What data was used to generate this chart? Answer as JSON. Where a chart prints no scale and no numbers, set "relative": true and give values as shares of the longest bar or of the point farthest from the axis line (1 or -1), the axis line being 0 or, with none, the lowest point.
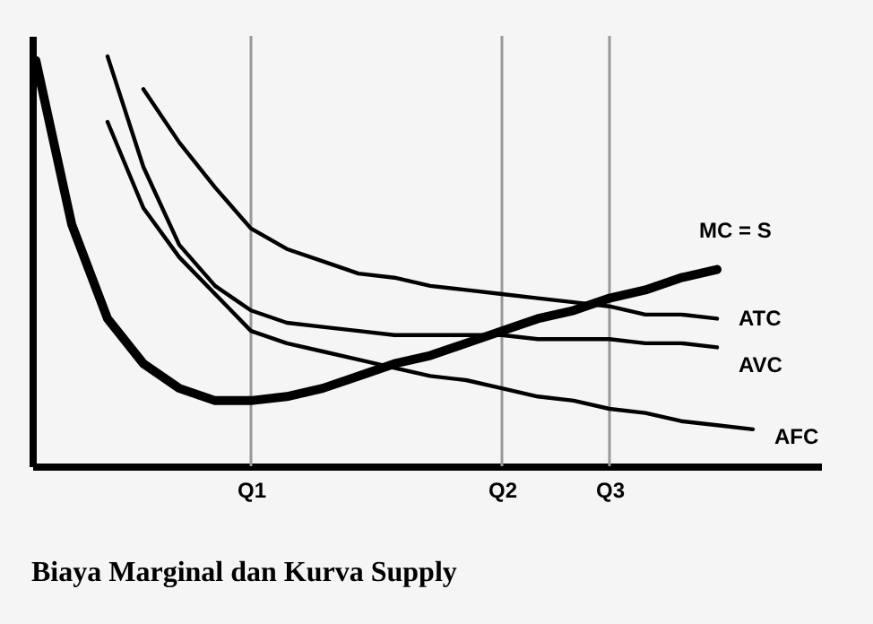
{
  "chart_data": {
    "type": "line",
    "relative": true,
    "title": "Biaya Marginal dan Kurva Supply",
    "categories": [
      null,
      null,
      null,
      null,
      null,
      null,
      "Q1",
      null,
      null,
      null,
      null,
      null,
      null,
      "Q2",
      null,
      null,
      "Q3",
      null,
      null,
      null,
      null
    ],
    "series": [
      {
        "name": "MC = S",
        "color": "#000000",
        "values": [
          0.99,
          0.59,
          0.36,
          0.25,
          0.19,
          0.16,
          0.16,
          0.17,
          0.19,
          0.22,
          0.25,
          0.27,
          0.3,
          0.33,
          0.36,
          0.38,
          0.41,
          0.43,
          0.46,
          0.48,
          null
        ]
      },
      {
        "name": "ATC",
        "color": "#000000",
        "values": [
          null,
          null,
          null,
          0.92,
          0.79,
          0.68,
          0.58,
          0.53,
          0.5,
          0.47,
          0.46,
          0.44,
          0.43,
          0.42,
          0.41,
          0.4,
          0.39,
          0.37,
          0.37,
          0.36,
          null
        ]
      },
      {
        "name": "AVC",
        "color": "#000000",
        "values": [
          null,
          null,
          1.0,
          0.73,
          0.54,
          0.44,
          0.38,
          0.35,
          0.34,
          0.33,
          0.32,
          0.32,
          0.32,
          0.32,
          0.31,
          0.31,
          0.31,
          0.3,
          0.3,
          0.29,
          null
        ]
      },
      {
        "name": "AFC",
        "color": "#000000",
        "values": [
          null,
          null,
          0.84,
          0.63,
          0.51,
          0.42,
          0.33,
          0.3,
          0.28,
          0.26,
          0.24,
          0.22,
          0.21,
          0.19,
          0.17,
          0.16,
          0.14,
          0.13,
          0.11,
          0.1,
          0.09
        ]
      }
    ],
    "ref_lines": [
      {
        "axis": "x",
        "value": "Q1",
        "color": "#999999"
      },
      {
        "axis": "x",
        "value": "Q2",
        "color": "#999999"
      },
      {
        "axis": "x",
        "value": "Q3",
        "color": "#999999"
      }
    ],
    "marker": "none",
    "line_style": "solid"
  }
}
